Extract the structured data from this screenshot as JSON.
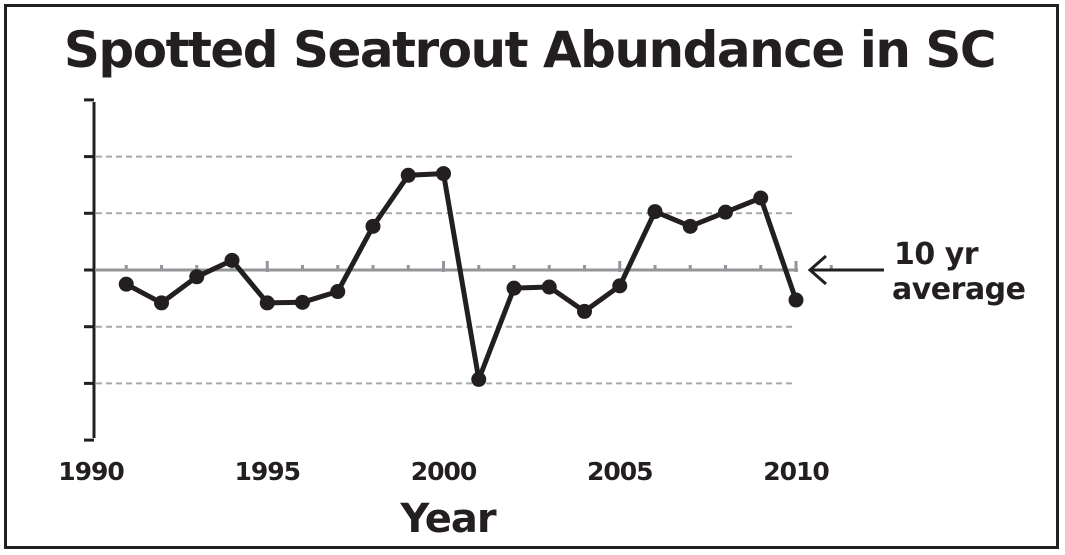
{
  "chart_data": {
    "type": "line",
    "title": "Spotted Seatrout Abundance in SC",
    "xlabel": "Year",
    "ylabel": "",
    "x_ticks": [
      1990,
      1995,
      2000,
      2005,
      2010
    ],
    "xlim": [
      1990,
      2011
    ],
    "ylim": [
      -3,
      3
    ],
    "y_gridlines": [
      -2,
      -1,
      1,
      2
    ],
    "reference_line": 0,
    "grid": true,
    "series": [
      {
        "x": [
          1991,
          1992,
          1993,
          1994,
          1995,
          1996,
          1997,
          1998,
          1999,
          2000,
          2001,
          2002,
          2003,
          2004,
          2005,
          2006,
          2007,
          2008,
          2009,
          2010
        ],
        "values": [
          -0.25,
          -0.58,
          -0.12,
          0.17,
          -0.58,
          -0.57,
          -0.38,
          0.77,
          1.67,
          1.7,
          -1.93,
          -0.32,
          -0.3,
          -0.73,
          -0.28,
          1.03,
          0.77,
          1.02,
          1.27,
          -0.53
        ]
      }
    ],
    "annotations": [
      {
        "text_line1": "10 yr",
        "text_line2": "average",
        "points_to": 0
      }
    ]
  }
}
